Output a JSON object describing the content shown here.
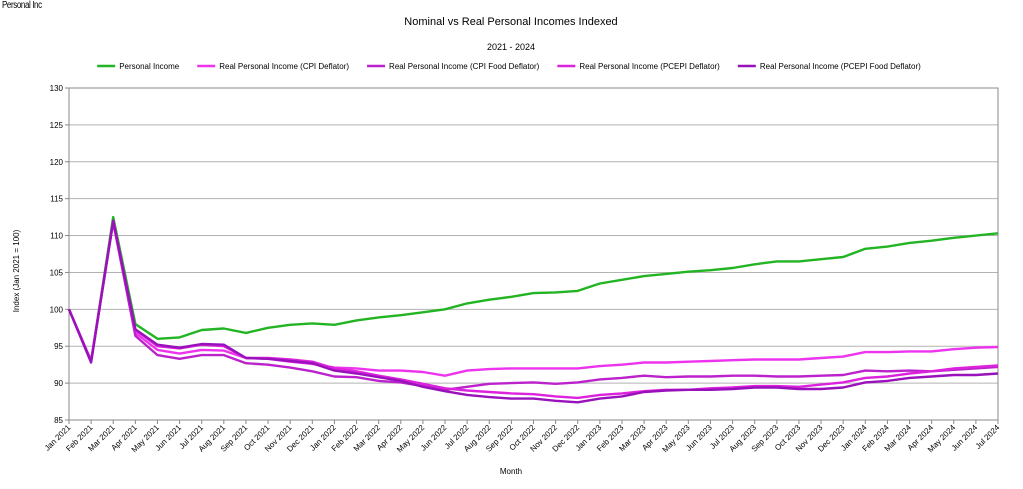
{
  "brand": "Personal Inc",
  "chart_data": {
    "type": "line",
    "title": "Nominal vs Real Personal Incomes Indexed",
    "subtitle": "2021 - 2024",
    "xlabel": "Month",
    "ylabel": "Index (Jan 2021 = 100)",
    "ylim": [
      85,
      130
    ],
    "yticks": [
      85,
      90,
      95,
      100,
      105,
      110,
      115,
      120,
      125,
      130
    ],
    "grid": true,
    "legend": "top",
    "categories": [
      "Jan 2021",
      "Feb 2021",
      "Mar 2021",
      "Apr 2021",
      "May 2021",
      "Jun 2021",
      "Jul 2021",
      "Aug 2021",
      "Sep 2021",
      "Oct 2021",
      "Nov 2021",
      "Dec 2021",
      "Jan 2022",
      "Feb 2022",
      "Mar 2022",
      "Apr 2022",
      "May 2022",
      "Jun 2022",
      "Jul 2022",
      "Aug 2022",
      "Sep 2022",
      "Oct 2022",
      "Nov 2022",
      "Dec 2022",
      "Jan 2023",
      "Feb 2023",
      "Mar 2023",
      "Apr 2023",
      "May 2023",
      "Jun 2023",
      "Jul 2023",
      "Aug 2023",
      "Sep 2023",
      "Oct 2023",
      "Nov 2023",
      "Dec 2023",
      "Jan 2024",
      "Feb 2024",
      "Mar 2024",
      "Apr 2024",
      "May 2024",
      "Jun 2024",
      "Jul 2024"
    ],
    "series": [
      {
        "name": "Personal Income",
        "color": "#22b422",
        "values": [
          100,
          93.0,
          112.5,
          98.0,
          96.0,
          96.2,
          97.2,
          97.4,
          96.8,
          97.5,
          97.9,
          98.1,
          97.9,
          98.5,
          98.9,
          99.2,
          99.6,
          100.0,
          100.8,
          101.3,
          101.7,
          102.2,
          102.3,
          102.5,
          103.5,
          104.0,
          104.5,
          104.8,
          105.1,
          105.3,
          105.6,
          106.1,
          106.5,
          106.5,
          106.8,
          107.1,
          108.2,
          108.5,
          109.0,
          109.3,
          109.7,
          110.0,
          110.3
        ]
      },
      {
        "name": "Real Personal Income (CPI Deflator)",
        "color": "#ee33ee",
        "values": [
          100,
          93.0,
          112.0,
          96.8,
          94.5,
          94.0,
          94.5,
          94.4,
          93.4,
          93.3,
          92.9,
          92.6,
          92.1,
          92.0,
          91.7,
          91.7,
          91.5,
          91.0,
          91.7,
          91.9,
          92.0,
          92.0,
          92.0,
          92.0,
          92.3,
          92.5,
          92.8,
          92.8,
          92.9,
          93.0,
          93.1,
          93.2,
          93.2,
          93.2,
          93.4,
          93.6,
          94.2,
          94.2,
          94.3,
          94.3,
          94.6,
          94.8,
          94.9
        ]
      },
      {
        "name": "Real Personal Income (CPI Food Deflator)",
        "color": "#bb22cc",
        "values": [
          100,
          93.0,
          111.8,
          96.4,
          93.8,
          93.3,
          93.8,
          93.8,
          92.7,
          92.5,
          92.1,
          91.6,
          90.9,
          90.8,
          90.3,
          90.1,
          89.6,
          89.1,
          89.5,
          89.9,
          90.0,
          90.1,
          89.9,
          90.1,
          90.5,
          90.7,
          91.0,
          90.8,
          90.9,
          90.9,
          91.0,
          91.0,
          90.9,
          90.9,
          91.0,
          91.1,
          91.7,
          91.6,
          91.7,
          91.6,
          91.8,
          92.0,
          92.2
        ]
      },
      {
        "name": "Real Personal Income (PCEPI Deflator)",
        "color": "#dd22dd",
        "values": [
          100,
          93.0,
          112.0,
          97.2,
          95.0,
          94.7,
          95.2,
          95.0,
          93.4,
          93.4,
          93.2,
          92.9,
          92.0,
          91.6,
          91.0,
          90.5,
          89.9,
          89.3,
          89.0,
          88.8,
          88.6,
          88.5,
          88.2,
          88.0,
          88.4,
          88.6,
          88.9,
          89.1,
          89.1,
          89.3,
          89.4,
          89.6,
          89.6,
          89.5,
          89.8,
          90.1,
          90.7,
          90.9,
          91.3,
          91.6,
          92.0,
          92.2,
          92.4
        ]
      },
      {
        "name": "Real Personal Income (PCEPI Food Deflator)",
        "color": "#9911bb",
        "values": [
          100,
          92.8,
          112.0,
          97.3,
          95.2,
          94.8,
          95.3,
          95.2,
          93.4,
          93.3,
          93.0,
          92.7,
          91.7,
          91.3,
          90.8,
          90.3,
          89.5,
          88.9,
          88.4,
          88.1,
          87.9,
          87.9,
          87.6,
          87.4,
          87.9,
          88.2,
          88.8,
          89.0,
          89.1,
          89.1,
          89.2,
          89.4,
          89.4,
          89.2,
          89.2,
          89.4,
          90.1,
          90.3,
          90.7,
          90.9,
          91.1,
          91.1,
          91.3
        ]
      }
    ]
  }
}
